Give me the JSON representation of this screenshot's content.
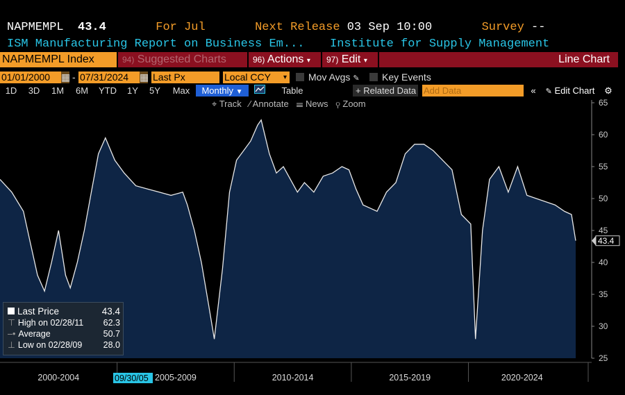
{
  "header": {
    "ticker": "NAPMEMPL",
    "value": "43.4",
    "for_label": "For",
    "for_period": "Jul",
    "next_release_label": "Next Release",
    "next_release_value": "03 Sep 10:00",
    "survey_label": "Survey",
    "survey_value": "--",
    "description": "ISM Manufacturing Report on Business Em...",
    "source": "Institute for Supply Management"
  },
  "toolbar": {
    "security": "NAPMEMPL Index",
    "suggested_num": "94)",
    "suggested": "Suggested Charts",
    "actions_num": "96)",
    "actions": "Actions",
    "edit_num": "97)",
    "edit": "Edit",
    "chart_type": "Line Chart",
    "start_date": "01/01/2000",
    "date_sep": "-",
    "end_date": "07/31/2024",
    "field": "Last Px",
    "currency": "Local CCY",
    "mov_avgs": "Mov Avgs",
    "key_events": "Key Events",
    "ranges": [
      "1D",
      "3D",
      "1M",
      "6M",
      "YTD",
      "1Y",
      "5Y",
      "Max"
    ],
    "frequency": "Monthly",
    "table": "Table",
    "related": "+ Related Data",
    "add_data": "Add Data",
    "edit_chart": "Edit Chart",
    "track": "Track",
    "annotate": "Annotate",
    "news": "News",
    "zoom": "Zoom"
  },
  "legend": {
    "last_label": "Last Price",
    "last_value": "43.4",
    "high_label": "High on 02/28/11",
    "high_value": "62.3",
    "avg_label": "Average",
    "avg_value": "50.7",
    "low_label": "Low on 02/28/09",
    "low_value": "28.0"
  },
  "cursor_date": "09/30/05",
  "colors": {
    "line": "#e8e8e8",
    "fill": "#0e2545",
    "accent": "#f39c28",
    "cyan": "#29c5e6",
    "red_bar": "#8b1020",
    "blue_btn": "#1f5fd6"
  },
  "chart_data": {
    "type": "area",
    "ylim": [
      25,
      65
    ],
    "y_ticks": [
      25,
      30,
      35,
      40,
      45,
      50,
      55,
      60,
      65
    ],
    "x_period_labels": [
      "2000-2004",
      "2005-2009",
      "2010-2014",
      "2015-2019",
      "2020-2024"
    ],
    "x": [
      2000.0,
      2000.5,
      2001.0,
      2001.3,
      2001.6,
      2001.9,
      2002.2,
      2002.5,
      2002.8,
      2003.0,
      2003.3,
      2003.6,
      2003.9,
      2004.2,
      2004.5,
      2004.9,
      2005.3,
      2005.8,
      2006.3,
      2006.8,
      2007.3,
      2007.8,
      2008.0,
      2008.3,
      2008.6,
      2008.9,
      2009.15,
      2009.5,
      2009.8,
      2010.1,
      2010.4,
      2010.7,
      2011.0,
      2011.15,
      2011.5,
      2011.8,
      2012.1,
      2012.4,
      2012.7,
      2013.0,
      2013.4,
      2013.8,
      2014.2,
      2014.6,
      2014.9,
      2015.2,
      2015.5,
      2015.8,
      2016.1,
      2016.5,
      2016.9,
      2017.3,
      2017.7,
      2018.1,
      2018.5,
      2018.9,
      2019.3,
      2019.7,
      2020.1,
      2020.3,
      2020.6,
      2020.9,
      2021.3,
      2021.7,
      2022.1,
      2022.5,
      2022.9,
      2023.3,
      2023.7,
      2024.1,
      2024.4,
      2024.58
    ],
    "series": [
      {
        "values": [
          53.0,
          51.0,
          48.0,
          43.0,
          38.0,
          35.5,
          40.0,
          45.0,
          38.0,
          36.0,
          40.0,
          45.0,
          51.0,
          57.0,
          59.5,
          56.0,
          54.0,
          52.0,
          51.5,
          51.0,
          50.5,
          51.0,
          49.0,
          45.0,
          40.0,
          33.5,
          28.0,
          39.0,
          51.0,
          56.0,
          57.5,
          59.0,
          61.5,
          62.3,
          57.0,
          54.0,
          55.0,
          53.0,
          51.0,
          52.5,
          51.0,
          53.5,
          54.0,
          55.0,
          54.5,
          51.5,
          49.0,
          48.5,
          48.0,
          51.0,
          52.5,
          57.0,
          58.5,
          58.5,
          57.5,
          56.0,
          54.5,
          47.5,
          46.0,
          28.0,
          45.0,
          53.0,
          55.0,
          51.0,
          55.0,
          50.5,
          50.0,
          49.5,
          49.0,
          48.0,
          47.5,
          43.4
        ]
      }
    ]
  }
}
